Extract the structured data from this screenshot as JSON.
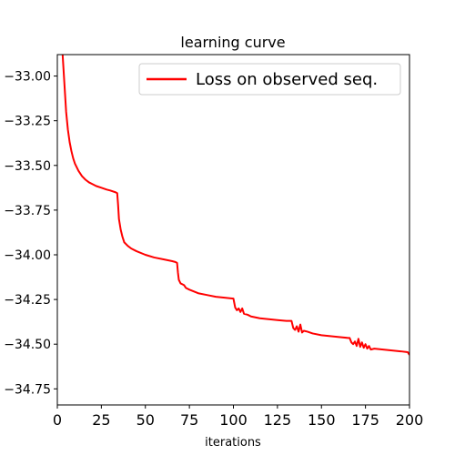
{
  "chart_data": {
    "type": "line",
    "title": "learning curve",
    "xlabel": "iterations",
    "ylabel": "",
    "xlim": [
      0,
      200
    ],
    "ylim": [
      -34.84,
      -32.88
    ],
    "xticks": [
      0,
      25,
      50,
      75,
      100,
      125,
      150,
      175,
      200
    ],
    "xtick_labels": [
      "0",
      "25",
      "50",
      "75",
      "100",
      "125",
      "150",
      "175",
      "200"
    ],
    "yticks": [
      -33.0,
      -33.25,
      -33.5,
      -33.75,
      -34.0,
      -34.25,
      -34.5,
      -34.75
    ],
    "ytick_labels": [
      "−33.00",
      "−33.25",
      "−33.50",
      "−33.75",
      "−34.00",
      "−34.25",
      "−34.50",
      "−34.75"
    ],
    "grid": false,
    "legend_position": "top-right",
    "series": [
      {
        "name": "Loss on observed seq.",
        "color": "#ff0000",
        "x": [
          3,
          4,
          5,
          6,
          7,
          8,
          9,
          10,
          12,
          14,
          16,
          18,
          20,
          22,
          25,
          28,
          30,
          33,
          34,
          34.5,
          35,
          36,
          37,
          38,
          40,
          42,
          45,
          50,
          55,
          60,
          65,
          67,
          68,
          68.5,
          69,
          70,
          71,
          72,
          73,
          75,
          80,
          85,
          90,
          95,
          100,
          101,
          102,
          103,
          104,
          105,
          106,
          108,
          110,
          115,
          120,
          125,
          130,
          133,
          134,
          135,
          136,
          137,
          138,
          139,
          140,
          142,
          145,
          150,
          155,
          160,
          165,
          166,
          167,
          168,
          169,
          170,
          171,
          172,
          173,
          174,
          175,
          176,
          177,
          178,
          180,
          185,
          190,
          195,
          199,
          200
        ],
        "y": [
          -32.88,
          -33.04,
          -33.2,
          -33.3,
          -33.37,
          -33.42,
          -33.46,
          -33.49,
          -33.53,
          -33.56,
          -33.58,
          -33.595,
          -33.605,
          -33.615,
          -33.625,
          -33.635,
          -33.64,
          -33.65,
          -33.655,
          -33.72,
          -33.8,
          -33.86,
          -33.9,
          -33.93,
          -33.95,
          -33.965,
          -33.98,
          -34.0,
          -34.015,
          -34.025,
          -34.035,
          -34.04,
          -34.045,
          -34.1,
          -34.14,
          -34.16,
          -34.165,
          -34.17,
          -34.185,
          -34.195,
          -34.215,
          -34.225,
          -34.235,
          -34.24,
          -34.245,
          -34.295,
          -34.31,
          -34.3,
          -34.32,
          -34.3,
          -34.33,
          -34.335,
          -34.345,
          -34.355,
          -34.36,
          -34.365,
          -34.37,
          -34.37,
          -34.41,
          -34.42,
          -34.4,
          -34.43,
          -34.39,
          -34.435,
          -34.425,
          -34.43,
          -34.44,
          -34.45,
          -34.455,
          -34.46,
          -34.465,
          -34.465,
          -34.49,
          -34.5,
          -34.485,
          -34.51,
          -34.47,
          -34.515,
          -34.49,
          -34.52,
          -34.5,
          -34.525,
          -34.51,
          -34.53,
          -34.525,
          -34.53,
          -34.535,
          -34.54,
          -34.545,
          -34.56
        ]
      }
    ]
  }
}
